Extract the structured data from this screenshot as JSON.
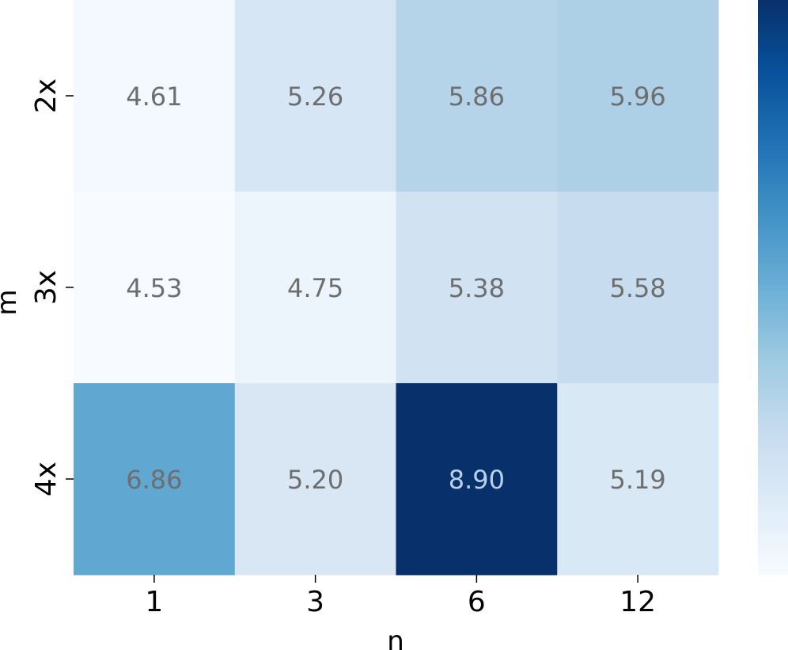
{
  "chart_data": {
    "type": "heatmap",
    "xlabel": "n",
    "ylabel": "m",
    "x_categories": [
      "1",
      "3",
      "6",
      "12"
    ],
    "y_categories": [
      "2x",
      "3x",
      "4x"
    ],
    "values": [
      [
        4.61,
        5.26,
        5.86,
        5.96
      ],
      [
        4.53,
        4.75,
        5.38,
        5.58
      ],
      [
        6.86,
        5.2,
        8.9,
        5.19
      ]
    ],
    "value_labels": [
      [
        "4.61",
        "5.26",
        "5.86",
        "5.96"
      ],
      [
        "4.53",
        "4.75",
        "5.38",
        "5.58"
      ],
      [
        "6.86",
        "5.20",
        "8.90",
        "5.19"
      ]
    ],
    "color_range": [
      4.53,
      8.9
    ],
    "colormap": "Blues",
    "colormap_stops": [
      "#f7fbff",
      "#deebf7",
      "#c6dbef",
      "#9ecae1",
      "#6baed6",
      "#4292c6",
      "#2171b5",
      "#08519c",
      "#08306b"
    ],
    "colorbar": true,
    "grid": false
  }
}
